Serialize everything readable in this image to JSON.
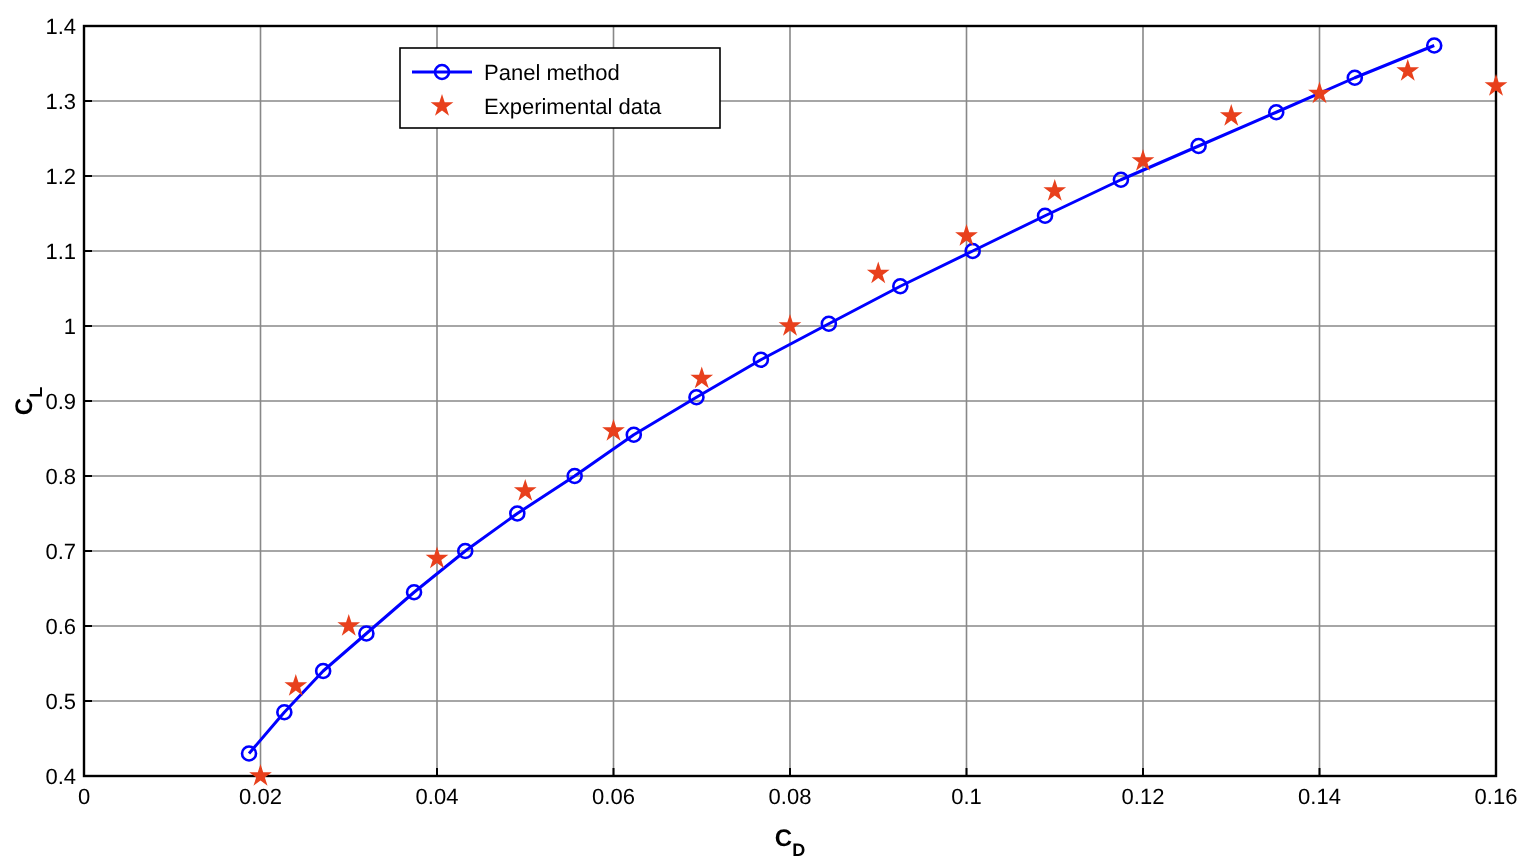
{
  "chart_data": {
    "type": "line",
    "xlabel": "C$_{D}$",
    "ylabel": "C$_{L}$",
    "xlim": [
      0,
      0.16
    ],
    "ylim": [
      0.4,
      1.4
    ],
    "xticks": [
      0,
      0.02,
      0.04,
      0.06,
      0.08,
      0.1,
      0.12,
      0.14,
      0.16
    ],
    "yticks": [
      0.4,
      0.5,
      0.6,
      0.7,
      0.8,
      0.9,
      1,
      1.1,
      1.2,
      1.3,
      1.4
    ],
    "grid": true,
    "legend": "top left",
    "series": [
      {
        "name": "Panel method",
        "color": "#0000ff",
        "marker": "circle",
        "line_style": "solid",
        "x": [
          0.0187,
          0.0227,
          0.0271,
          0.032,
          0.0374,
          0.0432,
          0.0491,
          0.0556,
          0.0623,
          0.0694,
          0.0767,
          0.0844,
          0.0925,
          0.1007,
          0.1089,
          0.1175,
          0.1263,
          0.1351,
          0.144,
          0.153
        ],
        "values": [
          0.43,
          0.485,
          0.54,
          0.59,
          0.645,
          0.7,
          0.75,
          0.8,
          0.855,
          0.905,
          0.955,
          1.003,
          1.053,
          1.1,
          1.147,
          1.195,
          1.24,
          1.285,
          1.331,
          1.374
        ]
      },
      {
        "name": "Experimental data",
        "type": "scatter",
        "color": "#e8401c",
        "marker": "star",
        "x": [
          0.02,
          0.024,
          0.03,
          0.04,
          0.05,
          0.06,
          0.07,
          0.08,
          0.09,
          0.1,
          0.11,
          0.12,
          0.13,
          0.14,
          0.15,
          0.16
        ],
        "values": [
          0.4,
          0.52,
          0.6,
          0.69,
          0.78,
          0.86,
          0.93,
          1.0,
          1.07,
          1.12,
          1.18,
          1.22,
          1.28,
          1.31,
          1.34,
          1.32
        ]
      }
    ]
  }
}
